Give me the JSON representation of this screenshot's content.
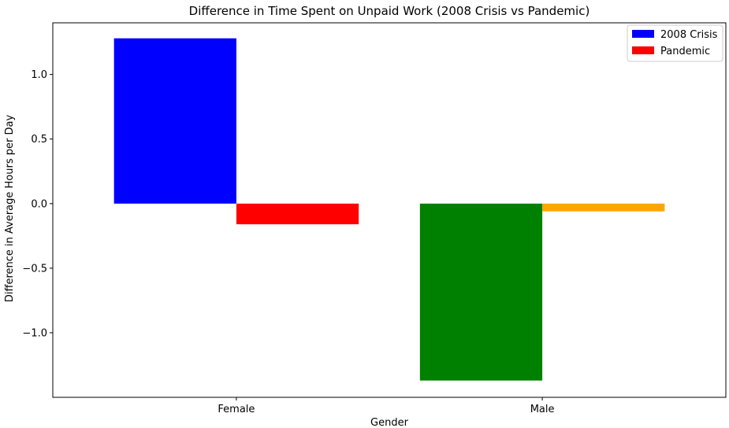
{
  "chart_data": {
    "type": "bar",
    "title": "Difference in Time Spent on Unpaid Work (2008 Crisis vs Pandemic)",
    "xlabel": "Gender",
    "ylabel": "Difference in Average Hours per Day",
    "categories": [
      "Female",
      "Male"
    ],
    "series": [
      {
        "name": "2008 Crisis",
        "values": [
          1.28,
          -1.37
        ],
        "colors": [
          "#0000ff",
          "#008000"
        ]
      },
      {
        "name": "Pandemic",
        "values": [
          -0.16,
          -0.06
        ],
        "colors": [
          "#ff0000",
          "#ffa500"
        ]
      }
    ],
    "ylim": [
      -1.5,
      1.4
    ],
    "yticks": [
      -1.0,
      -0.5,
      0.0,
      0.5,
      1.0
    ],
    "ytick_labels": [
      "−1.0",
      "−0.5",
      "0.0",
      "0.5",
      "1.0"
    ],
    "grid": false,
    "legend": {
      "position": "top-right",
      "entries": [
        {
          "label": "2008 Crisis",
          "color": "#0000ff"
        },
        {
          "label": "Pandemic",
          "color": "#ff0000"
        }
      ]
    }
  }
}
